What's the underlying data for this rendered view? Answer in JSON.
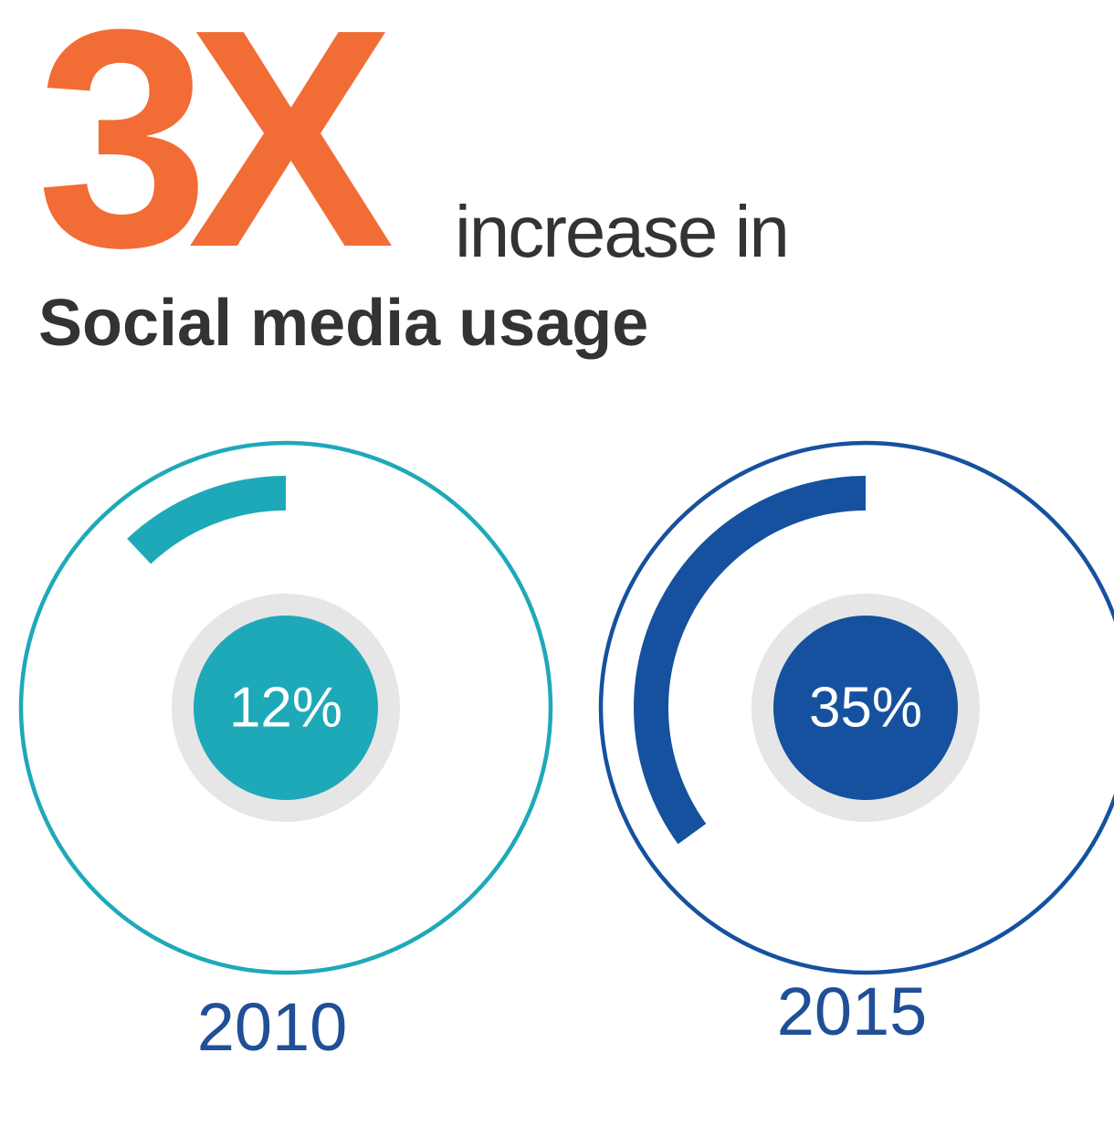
{
  "header": {
    "multiplier": "3X",
    "subline": "increase in",
    "title": "Social media usage"
  },
  "colors": {
    "accent": "#f26c36",
    "text_dark": "#333333",
    "teal": "#1ea9b8",
    "blue": "#15519f",
    "label_blue": "#1f4f97",
    "hub_ring": "#e6e6e6"
  },
  "chart_data": {
    "type": "pie",
    "title": "Social media usage",
    "categories": [
      "2010",
      "2015"
    ],
    "values": [
      12,
      35
    ],
    "value_labels": [
      "12%",
      "35%"
    ],
    "unit": "%"
  }
}
